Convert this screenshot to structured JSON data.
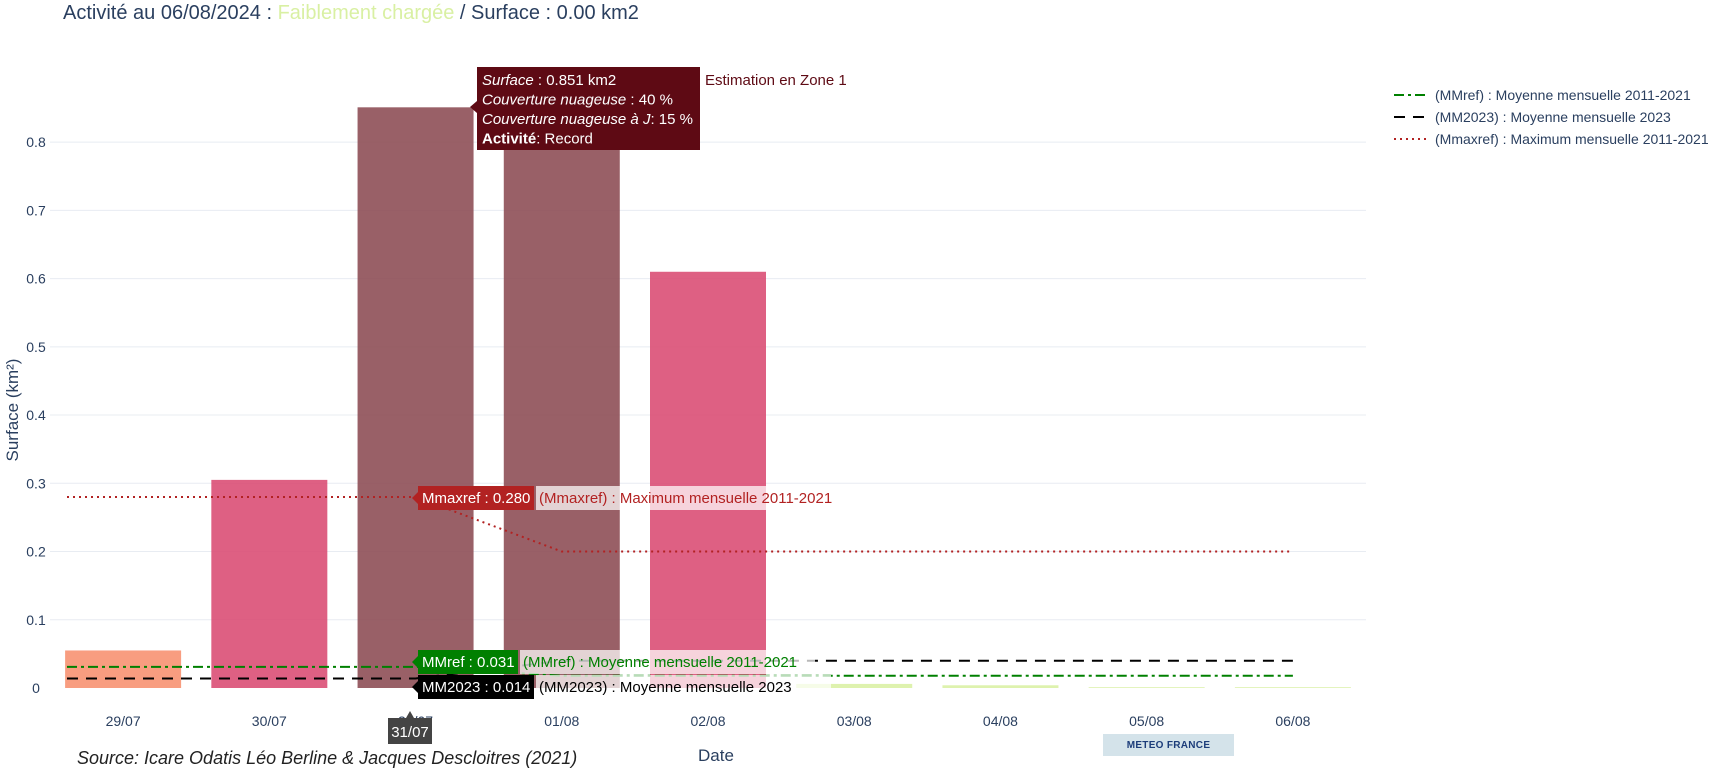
{
  "header": {
    "title_prefix": "Activité au 06/08/2024 : ",
    "title_level": "Faiblement chargée",
    "title_suffix": " / Surface : 0.00 km2"
  },
  "footer": {
    "source": "Source: Icare Odatis Léo Berline & Jacques Descloitres (2021)",
    "badge": "METEO FRANCE"
  },
  "colors": {
    "record": "#8b4a52",
    "high": "#d94a72",
    "moderate": "#f7906e",
    "low": "#d9f0a3",
    "mmref": "#008000",
    "mm2023": "#000000",
    "mmaxref": "#b22222",
    "tooltip_bg": "#5e0a14",
    "grid": "#e8ecf2"
  },
  "chart_data": {
    "type": "bar",
    "xlabel": "Date",
    "ylabel": "Surface (km²)",
    "ylim": [
      0,
      0.85
    ],
    "yticks": [
      0,
      0.1,
      0.2,
      0.3,
      0.4,
      0.5,
      0.6,
      0.7,
      0.8
    ],
    "ytick_labels": [
      "0",
      "0.1",
      "0.2",
      "0.3",
      "0.4",
      "0.5",
      "0.6",
      "0.7",
      "0.8"
    ],
    "categories": [
      "29/07",
      "30/07",
      "31/07",
      "01/08",
      "02/08",
      "03/08",
      "04/08",
      "05/08",
      "06/08"
    ],
    "values": [
      0.055,
      0.305,
      0.851,
      0.79,
      0.61,
      0.006,
      0.004,
      0.001,
      0.0
    ],
    "bar_colors": [
      "#f7906e",
      "#d94a72",
      "#8b4a52",
      "#8b4a52",
      "#d94a72",
      "#d9f0a3",
      "#d9f0a3",
      "#d9f0a3",
      "#d9f0a3"
    ],
    "grid": true,
    "legend_placement": "top-right",
    "series": [
      {
        "name": "(MMref) : Moyenne mensuelle 2011-2021",
        "color": "#008000",
        "dash": "dashdot",
        "x": [
          "29/07",
          "31/07",
          "01/08",
          "06/08"
        ],
        "values": [
          0.031,
          0.031,
          0.018,
          0.018
        ]
      },
      {
        "name": "(MM2023) : Moyenne mensuelle 2023",
        "color": "#000000",
        "dash": "dash",
        "x": [
          "29/07",
          "31/07",
          "01/08",
          "06/08"
        ],
        "values": [
          0.014,
          0.014,
          0.04,
          0.04
        ]
      },
      {
        "name": "(Mmaxref) : Maximum mensuelle 2011-2021",
        "color": "#b22222",
        "dash": "dot",
        "x": [
          "29/07",
          "31/07",
          "01/08",
          "06/08"
        ],
        "values": [
          0.28,
          0.28,
          0.2,
          0.2
        ]
      }
    ],
    "hover": {
      "bar_tooltip": [
        {
          "label": "Surface",
          "value": " : 0.851 km2",
          "style": "italic"
        },
        {
          "label": "Couverture nuageuse",
          "value": " : 40 %",
          "style": "italic"
        },
        {
          "label": "Couverture nuageuse à J",
          "value": ": 15 %",
          "style": "italic"
        },
        {
          "label": "Activité",
          "value": ": Record",
          "style": "bold"
        }
      ],
      "bar_note": "Estimation en Zone 1",
      "mmaxref_tag": "Mmaxref : 0.280",
      "mmaxref_name": "(Mmaxref) : Maximum mensuelle 2011-2021",
      "mmref_tag": "MMref : 0.031",
      "mmref_name": "(MMref) : Moyenne mensuelle 2011-2021",
      "mm2023_tag": "MM2023 : 0.014",
      "mm2023_name": "(MM2023) : Moyenne mensuelle 2023",
      "x_tag": "31/07"
    }
  }
}
